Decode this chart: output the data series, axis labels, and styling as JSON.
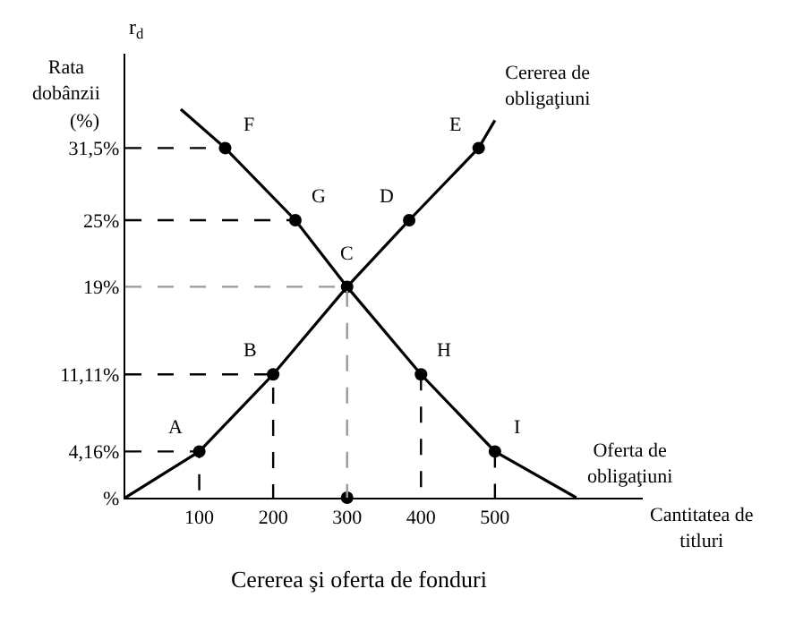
{
  "chart_data": {
    "type": "line",
    "title": "Cererea şi oferta de fonduri",
    "xlabel": "Cantitatea de titluri",
    "ylabel": "r$_{d}$",
    "annotations": [
      "Rata dobânzii",
      "(%)",
      {
        "text": "A",
        "x": 100,
        "y": 4.16
      },
      {
        "text": "B",
        "x": 200,
        "y": 11.11
      },
      {
        "text": "C",
        "x": 300,
        "y": 19
      },
      {
        "text": "D",
        "x": 384,
        "y": 25
      },
      {
        "text": "E",
        "x": 478,
        "y": 31.5
      },
      {
        "text": "F",
        "x": 135,
        "y": 31.5
      },
      {
        "text": "G",
        "x": 230,
        "y": 25
      },
      {
        "text": "H",
        "x": 400,
        "y": 11.11
      },
      {
        "text": "I",
        "x": 500,
        "y": 4.16
      }
    ],
    "series": [
      {
        "name": "Cererea de obligaţiuni",
        "color": "#000000",
        "marker": "none",
        "x": [
          0,
          100,
          200,
          300,
          384,
          478,
          500
        ],
        "values": [
          0,
          4.16,
          11.11,
          19,
          25,
          31.5,
          34
        ]
      },
      {
        "name": "Oferta de obligaţiuni",
        "color": "#000000",
        "marker": "none",
        "x": [
          75,
          135,
          230,
          300,
          400,
          500,
          610
        ],
        "values": [
          35,
          31.5,
          25,
          19,
          11.11,
          4.16,
          0
        ]
      },
      {
        "type": "scatter",
        "color": "#000000",
        "marker": "circle",
        "x": [
          100,
          200,
          300,
          384,
          478,
          135,
          230,
          400,
          500,
          300
        ],
        "values": [
          4.16,
          11.11,
          19,
          25,
          31.5,
          31.5,
          25,
          11.11,
          4.16,
          0
        ]
      },
      {
        "type": "line",
        "color": "#000000",
        "marker": "none",
        "line_style": "dashed",
        "x": [
          0,
          100,
          100
        ],
        "values": [
          4.16,
          4.16,
          0
        ]
      },
      {
        "type": "line",
        "color": "#000000",
        "marker": "none",
        "line_style": "dashed",
        "x": [
          0,
          200,
          200
        ],
        "values": [
          11.11,
          11.11,
          0
        ]
      },
      {
        "type": "line",
        "color": "#999999",
        "marker": "none",
        "line_style": "dashed",
        "x": [
          0,
          300,
          300
        ],
        "values": [
          19,
          19,
          0
        ]
      },
      {
        "type": "line",
        "color": "#000000",
        "marker": "none",
        "line_style": "dashed",
        "x": [
          0,
          230
        ],
        "values": [
          25,
          25
        ]
      },
      {
        "type": "line",
        "color": "#000000",
        "marker": "none",
        "line_style": "dashed",
        "x": [
          0,
          135
        ],
        "values": [
          31.5,
          31.5
        ]
      },
      {
        "type": "line",
        "color": "#000000",
        "marker": "none",
        "line_style": "dashed",
        "x": [
          400,
          400
        ],
        "values": [
          11.11,
          0
        ]
      },
      {
        "type": "line",
        "color": "#000000",
        "marker": "none",
        "line_style": "dashed",
        "x": [
          500,
          500
        ],
        "values": [
          4.16,
          0
        ]
      }
    ],
    "xlim": [
      0,
      700
    ],
    "ylim": [
      0,
      40
    ],
    "xticks": [
      100,
      200,
      300,
      400,
      500
    ],
    "yticks": [
      {
        "value": 0,
        "label": "%"
      },
      {
        "value": 4.16,
        "label": "4,16%"
      },
      {
        "value": 11.11,
        "label": "11,11%"
      },
      {
        "value": 19,
        "label": "19%"
      },
      {
        "value": 25,
        "label": "25%"
      },
      {
        "value": 31.5,
        "label": "31,5%"
      }
    ],
    "legend": false
  }
}
